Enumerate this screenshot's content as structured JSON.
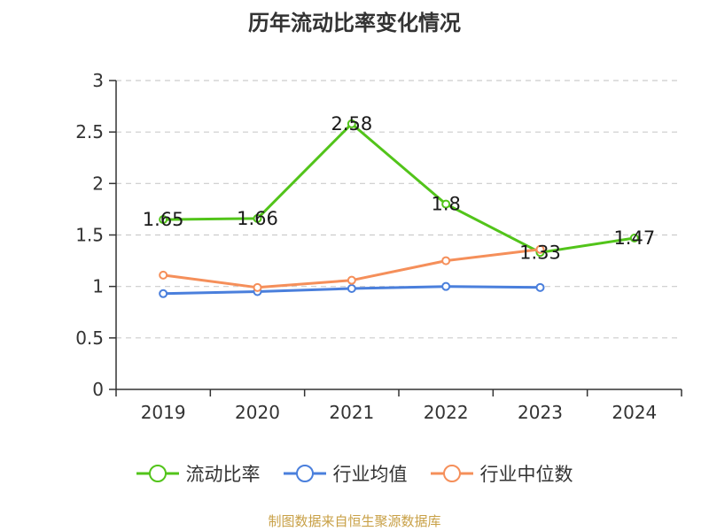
{
  "chart_data": {
    "type": "line",
    "title": "历年流动比率变化情况",
    "categories": [
      "2019",
      "2020",
      "2021",
      "2022",
      "2023",
      "2024"
    ],
    "ylim": [
      0,
      3
    ],
    "yticks": [
      "0",
      "0.5",
      "1",
      "1.5",
      "2",
      "2.5",
      "3"
    ],
    "ytick_values": [
      0,
      0.5,
      1,
      1.5,
      2,
      2.5,
      3
    ],
    "grid": true,
    "legend_position": "bottom",
    "series": [
      {
        "name": "流动比率",
        "color": "#52c41a",
        "values": [
          1.65,
          1.66,
          2.58,
          1.8,
          1.33,
          1.47
        ],
        "labels": [
          "1.65",
          "1.66",
          "2.58",
          "1.8",
          "1.33",
          "1.47"
        ],
        "show_labels": true
      },
      {
        "name": "行业均值",
        "color": "#4a7fdc",
        "values": [
          0.93,
          0.95,
          0.98,
          1.0,
          0.99,
          null
        ],
        "show_labels": false
      },
      {
        "name": "行业中位数",
        "color": "#f58f5a",
        "values": [
          1.11,
          0.99,
          1.06,
          1.25,
          1.36,
          null
        ],
        "show_labels": false
      }
    ]
  },
  "source_note": "制图数据来自恒生聚源数据库"
}
